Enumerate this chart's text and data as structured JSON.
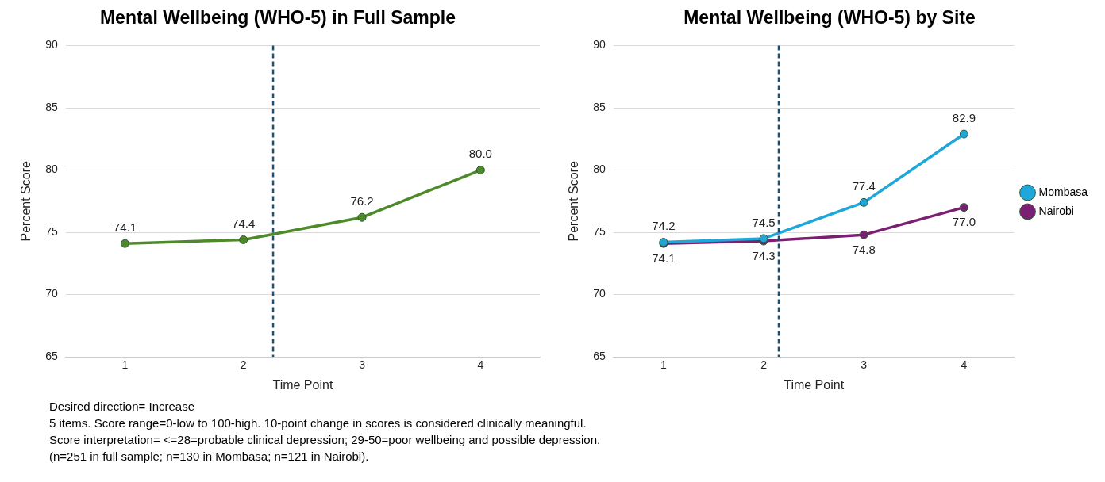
{
  "chart_data": [
    {
      "type": "line",
      "title": "Mental Wellbeing (WHO-5) in Full Sample",
      "xlabel": "Time Point",
      "ylabel": "Percent Score",
      "x": [
        1,
        2,
        3,
        4
      ],
      "xlim": [
        0.5,
        4.5
      ],
      "xticks": [
        1,
        2,
        3,
        4
      ],
      "ylim": [
        65,
        90
      ],
      "yticks": [
        65,
        70,
        75,
        80,
        85,
        90
      ],
      "grid": "y",
      "legend": false,
      "marker": "circle",
      "line_style": "solid",
      "series": [
        {
          "color": "#4e8a2a",
          "values": [
            74.1,
            74.4,
            76.2,
            80.0
          ],
          "value_labels": [
            "74.1",
            "74.4",
            "76.2",
            "80.0"
          ]
        }
      ],
      "ref_lines": [
        {
          "axis": "x",
          "value": 2.25,
          "color": "#1f5070",
          "line_style": "dashed"
        }
      ]
    },
    {
      "type": "line",
      "title": "Mental Wellbeing (WHO-5) by Site",
      "xlabel": "Time Point",
      "ylabel": "Percent Score",
      "x": [
        1,
        2,
        3,
        4
      ],
      "xlim": [
        0.5,
        4.5
      ],
      "xticks": [
        1,
        2,
        3,
        4
      ],
      "ylim": [
        65,
        90
      ],
      "yticks": [
        65,
        70,
        75,
        80,
        85,
        90
      ],
      "grid": "y",
      "legend": "right",
      "marker": "circle",
      "line_style": "solid",
      "series": [
        {
          "name": "Mombasa",
          "color": "#1ea7d8",
          "values": [
            74.2,
            74.5,
            77.4,
            82.9
          ],
          "value_labels": [
            "74.2",
            "74.5",
            "77.4",
            "82.9"
          ]
        },
        {
          "name": "Nairobi",
          "color": "#7b1f73",
          "values": [
            74.1,
            74.3,
            74.8,
            77.0
          ],
          "value_labels": [
            "74.1",
            "74.3",
            "74.8",
            "77.0"
          ]
        }
      ],
      "ref_lines": [
        {
          "axis": "x",
          "value": 2.15,
          "color": "#1f5070",
          "line_style": "dashed"
        }
      ],
      "annotations": [
        "Desired direction= Increase",
        "5 items. Score range=0-low to 100-high. 10-point change in scores is considered clinically meaningful.",
        "Score interpretation=  <=28=probable clinical depression; 29-50=poor wellbeing and possible depression.",
        "(n=251 in full sample; n=130 in Mombasa; n=121 in Nairobi)."
      ]
    }
  ]
}
